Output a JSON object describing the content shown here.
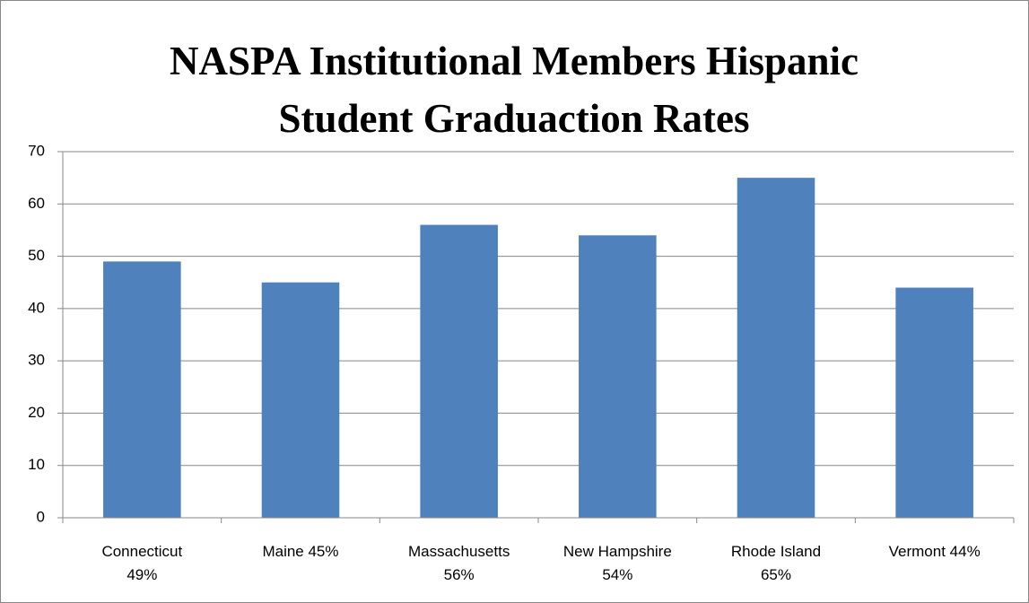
{
  "chart_data": {
    "type": "bar",
    "title": "NASPA Institutional Members Hispanic Student Graduaction Rates",
    "categories": [
      "Connecticut\n49%",
      "Maine 45%",
      "Massachusetts\n56%",
      "New Hampshire\n54%",
      "Rhode Island\n65%",
      "Vermont 44%"
    ],
    "values": [
      49,
      45,
      56,
      54,
      65,
      44
    ],
    "color": "#4f81bd",
    "ylim": [
      0,
      70
    ],
    "yticks": [
      0,
      10,
      20,
      30,
      40,
      50,
      60,
      70
    ],
    "grid": true
  }
}
